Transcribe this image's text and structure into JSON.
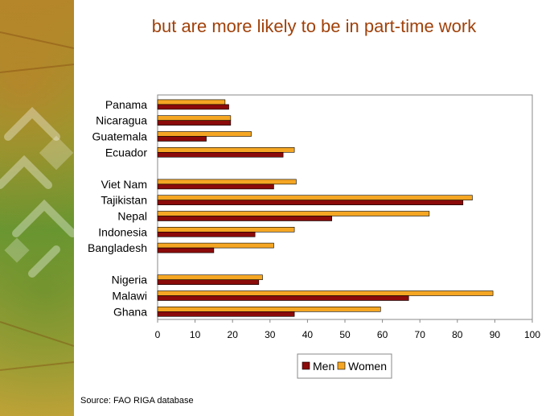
{
  "title": "but are more likely to be in part-time work",
  "source": "Source: FAO RIGA database",
  "colors": {
    "men": "#8b0a0a",
    "women": "#f5a623",
    "title": "#a0410a"
  },
  "chart_data": {
    "type": "bar",
    "orientation": "horizontal",
    "title": "but are more likely to be in part-time work",
    "categories": [
      "Panama",
      "Nicaragua",
      "Guatemala",
      "Ecuador",
      "Viet Nam",
      "Tajikistan",
      "Nepal",
      "Indonesia",
      "Bangladesh",
      "Nigeria",
      "Malawi",
      "Ghana"
    ],
    "groups": [
      [
        "Panama",
        "Nicaragua",
        "Guatemala",
        "Ecuador"
      ],
      [
        "Viet Nam",
        "Tajikistan",
        "Nepal",
        "Indonesia",
        "Bangladesh"
      ],
      [
        "Nigeria",
        "Malawi",
        "Ghana"
      ]
    ],
    "series": [
      {
        "name": "Women",
        "values": [
          18,
          19.5,
          25,
          36.5,
          37,
          84,
          72.5,
          36.5,
          31,
          28,
          89.5,
          59.5
        ]
      },
      {
        "name": "Men",
        "values": [
          19,
          19.5,
          13,
          33.5,
          31,
          81.5,
          46.5,
          26,
          15,
          27,
          67,
          36.5
        ]
      }
    ],
    "xlim": [
      0,
      100
    ],
    "x_ticks": [
      "0",
      "10",
      "20",
      "30",
      "40",
      "50",
      "60",
      "70",
      "80",
      "90",
      "100"
    ],
    "legend": {
      "position": "bottom",
      "entries": [
        "Men",
        "Women"
      ]
    },
    "grid": false
  }
}
